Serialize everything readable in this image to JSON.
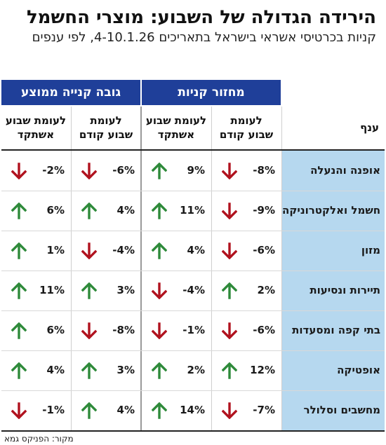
{
  "title": "הירידה הגדולה של השבוע: מוצרי החשמל",
  "subtitle": "קניות בכרטיסי אשראי בישראל בתאריכים 4-10.1.26, לפי ענפים",
  "groups": [
    {
      "label": "מחזור קניות"
    },
    {
      "label": "גובה קנייה ממוצע"
    }
  ],
  "columns": {
    "branch": "ענף",
    "items": [
      {
        "line1": "לעומת",
        "line2": "שבוע קודם"
      },
      {
        "line1": "לעומת שבוע",
        "line2": "אשתקד"
      },
      {
        "line1": "לעומת",
        "line2": "שבוע קודם"
      },
      {
        "line1": "לעומת שבוע",
        "line2": "אשתקד"
      }
    ]
  },
  "colors": {
    "header_blue": "#1f3f99",
    "branch_bg": "#b6d8ef",
    "up": "#2e8a3a",
    "down": "#b0121e"
  },
  "rows": [
    {
      "branch": "אופנה והנעלה",
      "cells": [
        {
          "text": "-8%",
          "direction": "down"
        },
        {
          "text": "9%",
          "direction": "up"
        },
        {
          "text": "-6%",
          "direction": "down"
        },
        {
          "text": "-2%",
          "direction": "down"
        }
      ]
    },
    {
      "branch": "חשמל ואלקטרוניקה",
      "cells": [
        {
          "text": "-9%",
          "direction": "down"
        },
        {
          "text": "11%",
          "direction": "up"
        },
        {
          "text": "4%",
          "direction": "up"
        },
        {
          "text": "6%",
          "direction": "up"
        }
      ]
    },
    {
      "branch": "מזון",
      "cells": [
        {
          "text": "-6%",
          "direction": "down"
        },
        {
          "text": "4%",
          "direction": "up"
        },
        {
          "text": "-4%",
          "direction": "down"
        },
        {
          "text": "1%",
          "direction": "up"
        }
      ]
    },
    {
      "branch": "תיירות ונסיעות",
      "cells": [
        {
          "text": "2%",
          "direction": "up"
        },
        {
          "text": "-4%",
          "direction": "down"
        },
        {
          "text": "3%",
          "direction": "up"
        },
        {
          "text": "11%",
          "direction": "up"
        }
      ]
    },
    {
      "branch": "בתי קפה ומסעדות",
      "cells": [
        {
          "text": "-6%",
          "direction": "down"
        },
        {
          "text": "-1%",
          "direction": "down"
        },
        {
          "text": "-8%",
          "direction": "down"
        },
        {
          "text": "6%",
          "direction": "up"
        }
      ]
    },
    {
      "branch": "אופטיקה",
      "cells": [
        {
          "text": "12%",
          "direction": "up"
        },
        {
          "text": "2%",
          "direction": "up"
        },
        {
          "text": "3%",
          "direction": "up"
        },
        {
          "text": "4%",
          "direction": "up"
        }
      ]
    },
    {
      "branch": "מחשבים וסלולר",
      "cells": [
        {
          "text": "-7%",
          "direction": "down"
        },
        {
          "text": "14%",
          "direction": "up"
        },
        {
          "text": "4%",
          "direction": "up"
        },
        {
          "text": "-1%",
          "direction": "down"
        }
      ]
    }
  ],
  "source": "מקור: הפניקס גמא"
}
